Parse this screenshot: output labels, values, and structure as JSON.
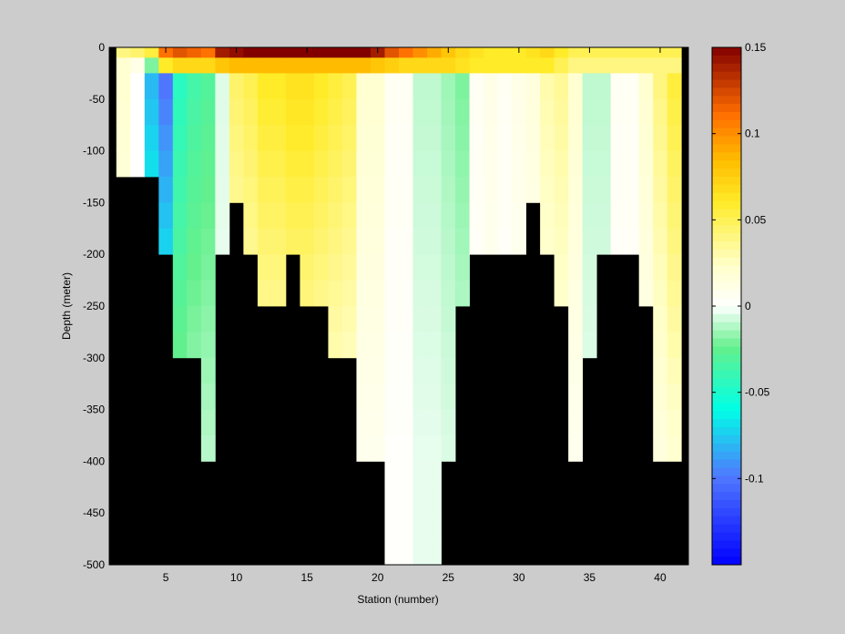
{
  "chart_data": {
    "type": "heatmap",
    "title": "",
    "xlabel": "Station (number)",
    "ylabel": "Depth (meter)",
    "xlim": [
      1,
      42
    ],
    "ylim": [
      -500,
      0
    ],
    "x_ticks": [
      5,
      10,
      15,
      20,
      25,
      30,
      35,
      40
    ],
    "y_ticks": [
      0,
      -50,
      -100,
      -150,
      -200,
      -250,
      -300,
      -350,
      -400,
      -450,
      -500
    ],
    "colorbar": {
      "range": [
        -0.15,
        0.15
      ],
      "ticks": [
        0.15,
        0.1,
        0.05,
        0,
        -0.05,
        -0.1
      ],
      "tick_labels": [
        "0.15",
        "0.1",
        "0.05",
        "0",
        "-0.05",
        "-0.1"
      ]
    },
    "stations": [
      2,
      3,
      4,
      5,
      6,
      7,
      8,
      9,
      10,
      11,
      12,
      13,
      14,
      15,
      16,
      17,
      18,
      19,
      20,
      21,
      22,
      23,
      24,
      25,
      26,
      27,
      28,
      29,
      30,
      31,
      32,
      33,
      34,
      35,
      36,
      37,
      38,
      39,
      40,
      41
    ],
    "bin_edges_x": [
      1.5,
      2.5,
      3.5,
      4.5,
      5.5,
      6.5,
      7.5,
      8.5,
      9.5,
      10.5,
      11.5,
      12.5,
      13.5,
      14.5,
      15.5,
      16.5,
      17.5,
      18.5,
      19.5,
      20.5,
      21.5,
      22.5,
      23.5,
      24.5,
      25.5,
      26.5,
      27.5,
      28.5,
      29.5,
      30.5,
      31.5,
      32.5,
      33.5,
      34.5,
      35.5,
      36.5,
      37.5,
      38.5,
      39.5,
      40.5,
      41.5
    ],
    "station_bottom_depth": [
      -125,
      -125,
      -125,
      -200,
      -300,
      -300,
      -400,
      -200,
      -150,
      -200,
      -250,
      -250,
      -200,
      -250,
      -250,
      -300,
      -300,
      -400,
      -400,
      -500,
      -500,
      -500,
      -500,
      -400,
      -250,
      -200,
      -200,
      -200,
      -200,
      -150,
      -200,
      -250,
      -400,
      -300,
      -200,
      -200,
      -200,
      -250,
      -400,
      -400
    ],
    "depth_levels": [
      -5,
      -15,
      -37.5,
      -62.5,
      -87.5,
      -112.5,
      -137.5,
      -162.5,
      -187.5,
      -212.5,
      -237.5,
      -262.5,
      -287.5,
      -312.5,
      -337.5,
      -362.5,
      -387.5,
      -412.5,
      -437.5,
      -462.5,
      -487.5
    ],
    "depth_edges": [
      0,
      -10,
      -25,
      -50,
      -75,
      -100,
      -125,
      -150,
      -175,
      -200,
      -225,
      -250,
      -275,
      -300,
      -325,
      -350,
      -375,
      -400,
      -425,
      -450,
      -475,
      -500
    ],
    "surface_profile_0_10m": [
      0.04,
      0.045,
      0.055,
      0.11,
      0.12,
      0.115,
      0.11,
      0.14,
      0.145,
      0.15,
      0.15,
      0.15,
      0.15,
      0.15,
      0.15,
      0.15,
      0.15,
      0.15,
      0.14,
      0.12,
      0.11,
      0.1,
      0.09,
      0.08,
      0.07,
      0.065,
      0.06,
      0.06,
      0.06,
      0.065,
      0.07,
      0.06,
      0.05,
      0.05,
      0.05,
      0.05,
      0.05,
      0.05,
      0.05,
      0.05
    ],
    "subsurface_profile_10_25m": [
      0.02,
      0.01,
      -0.02,
      0.06,
      0.07,
      0.07,
      0.07,
      0.08,
      0.085,
      0.085,
      0.085,
      0.085,
      0.085,
      0.085,
      0.085,
      0.085,
      0.085,
      0.085,
      0.08,
      0.075,
      0.07,
      0.07,
      0.07,
      0.07,
      0.065,
      0.06,
      0.06,
      0.06,
      0.06,
      0.06,
      0.06,
      0.05,
      0.04,
      0.04,
      0.04,
      0.04,
      0.04,
      0.04,
      0.04,
      0.04
    ],
    "interior_mean_values": [
      0.02,
      0,
      -0.08,
      -0.1,
      -0.045,
      -0.035,
      -0.03,
      -0.005,
      0.045,
      0.05,
      0.06,
      0.06,
      0.065,
      0.065,
      0.06,
      0.055,
      0.05,
      0.02,
      0.02,
      0.005,
      0.005,
      -0.01,
      -0.01,
      -0.015,
      -0.02,
      0.005,
      0.01,
      0.005,
      0.01,
      0.015,
      0.03,
      0.035,
      0.02,
      -0.01,
      -0.01,
      0.005,
      0.005,
      0.02,
      0.04,
      0.055
    ]
  }
}
